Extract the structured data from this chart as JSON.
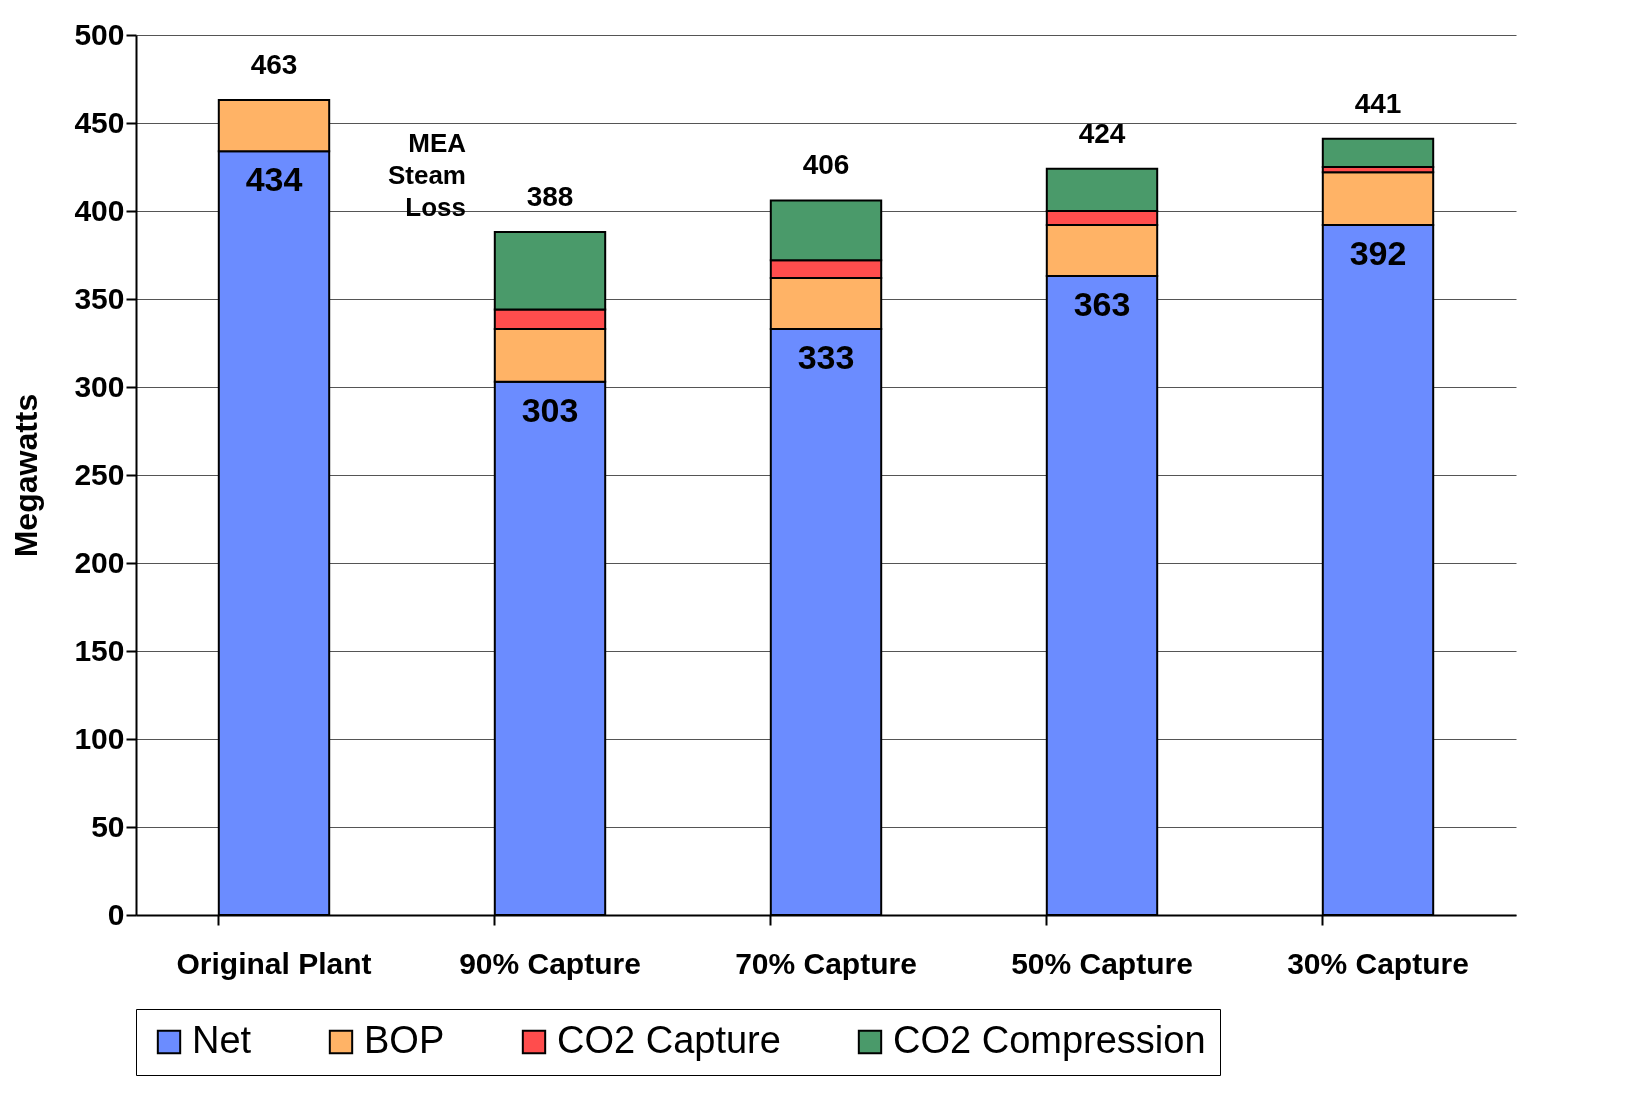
{
  "chart_data": {
    "type": "bar",
    "stacked": true,
    "ylabel": "Megawatts",
    "categories": [
      "Original Plant",
      "90% Capture",
      "70% Capture",
      "50% Capture",
      "30% Capture"
    ],
    "series": [
      {
        "name": "Net",
        "color": "#6b8cff",
        "values": [
          434,
          303,
          333,
          363,
          392
        ],
        "value_labels": [
          "434",
          "303",
          "333",
          "363",
          "392"
        ]
      },
      {
        "name": "BOP",
        "color": "#ffb366",
        "values": [
          29,
          30,
          29,
          29,
          30
        ]
      },
      {
        "name": "CO2 Capture",
        "color": "#ff4d4d",
        "values": [
          null,
          11,
          10,
          8,
          3
        ]
      },
      {
        "name": "CO2 Compression",
        "color": "#4a9a6a",
        "values": [
          null,
          44,
          34,
          24,
          16
        ]
      }
    ],
    "totals": [
      "463",
      "388",
      "406",
      "424",
      "441"
    ],
    "ylim": [
      0,
      500
    ],
    "yticks": [
      0,
      50,
      100,
      150,
      200,
      250,
      300,
      350,
      400,
      450,
      500
    ],
    "grid": "y",
    "legend": "bottom",
    "annotations": [
      "MEA Steam Loss"
    ]
  }
}
